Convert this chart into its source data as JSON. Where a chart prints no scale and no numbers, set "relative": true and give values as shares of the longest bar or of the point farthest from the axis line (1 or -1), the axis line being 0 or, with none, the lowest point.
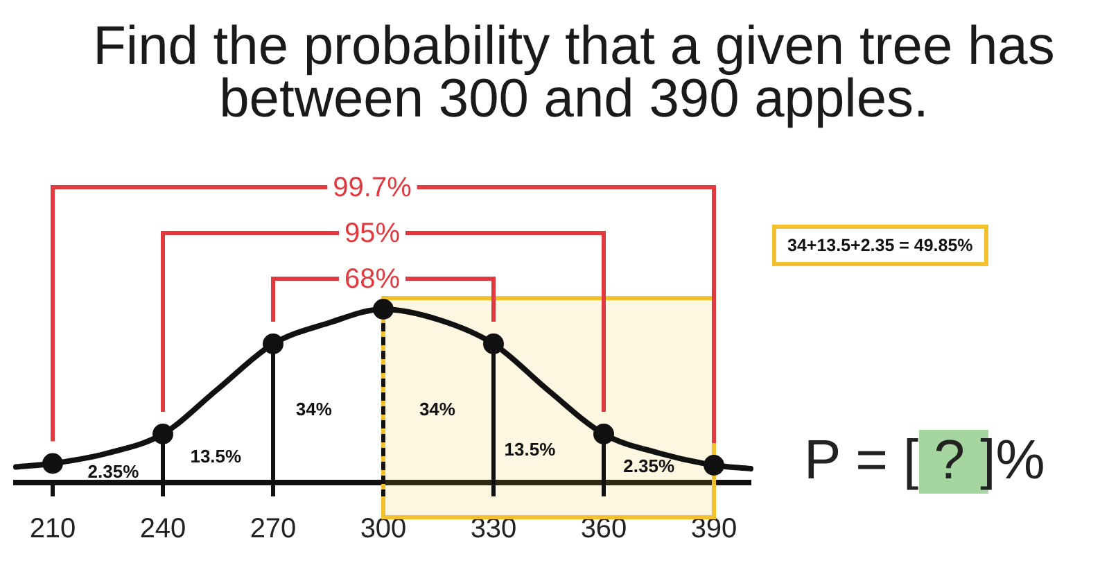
{
  "chart_data": {
    "type": "line",
    "title": "Find the probability that a given tree has between 300 and 390 apples.",
    "relative": true,
    "series": [
      {
        "color": "#111111",
        "marker": "none",
        "x": [
          200,
          210,
          225,
          240,
          255,
          270,
          285,
          300,
          315,
          330,
          345,
          360,
          375,
          390,
          400
        ],
        "values": [
          0.09,
          0.11,
          0.17,
          0.28,
          0.54,
          0.8,
          0.92,
          1,
          0.94,
          0.8,
          0.53,
          0.28,
          0.17,
          0.1,
          0.08
        ]
      },
      {
        "type": "scatter",
        "color": "#111111",
        "x": [
          210,
          240,
          270,
          300,
          330,
          360,
          390
        ],
        "values": [
          0.11,
          0.28,
          0.8,
          1,
          0.8,
          0.28,
          0.1
        ]
      }
    ],
    "xlim": [
      200,
      400
    ],
    "xticks": [
      210,
      240,
      270,
      300,
      330,
      360,
      390
    ],
    "marker": "circle",
    "ref_lines": [
      {
        "axis": "x",
        "value": 240,
        "color": "#111111"
      },
      {
        "axis": "x",
        "value": 270,
        "color": "#111111"
      },
      {
        "axis": "x",
        "value": 300,
        "color": "#111111",
        "line_style": "dashed"
      },
      {
        "axis": "x",
        "value": 330,
        "color": "#111111"
      },
      {
        "axis": "x",
        "value": 360,
        "color": "#111111"
      }
    ],
    "bands": [
      {
        "axis": "x",
        "from": 300,
        "to": 390,
        "color": "#f2c12e"
      }
    ],
    "annotations": [
      "99.7%",
      "95%",
      "68%",
      "2.35%",
      "13.5%",
      "34%",
      "34%",
      "13.5%",
      "2.35%",
      "34+13.5+2.35 = 49.85%",
      "P = [ ? ]%"
    ]
  }
}
